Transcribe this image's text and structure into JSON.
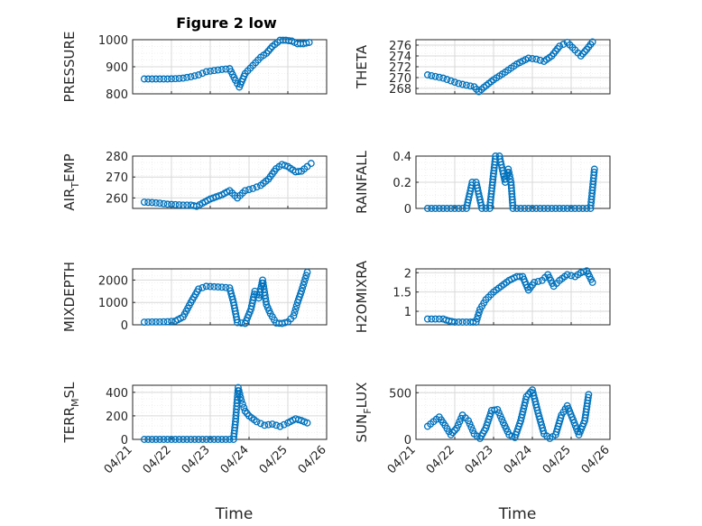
{
  "figure": {
    "title": "Figure 2 low"
  },
  "colors": {
    "marker": "#0072BD",
    "axis": "#262626",
    "grid": "#d9d9d9",
    "minor_grid": "#ececec"
  },
  "chart_data": [
    {
      "type": "scatter",
      "id": "pressure",
      "title": "Figure 2 low",
      "ylabel": "PRESSURE",
      "ylim": [
        800,
        1000
      ],
      "yticks": [
        800,
        900,
        1000
      ],
      "xlabel": "",
      "xlim": [
        0,
        5
      ],
      "xticks": [
        0,
        1,
        2,
        3,
        4,
        5
      ],
      "xticklabels": [
        "04/21",
        "04/22",
        "04/23",
        "04/24",
        "04/25",
        "04/26"
      ],
      "show_xticklabels": false,
      "grid": true,
      "minor_grid": true,
      "points": [
        [
          0.3,
          855
        ],
        [
          0.5,
          855
        ],
        [
          0.7,
          855
        ],
        [
          0.9,
          855
        ],
        [
          1.1,
          856
        ],
        [
          1.3,
          858
        ],
        [
          1.5,
          863
        ],
        [
          1.7,
          870
        ],
        [
          1.9,
          882
        ],
        [
          2.1,
          886
        ],
        [
          2.3,
          890
        ],
        [
          2.5,
          893
        ],
        [
          2.65,
          850
        ],
        [
          2.75,
          825
        ],
        [
          2.9,
          875
        ],
        [
          3.1,
          905
        ],
        [
          3.3,
          935
        ],
        [
          3.45,
          950
        ],
        [
          3.6,
          975
        ],
        [
          3.8,
          998
        ],
        [
          3.95,
          998
        ],
        [
          4.1,
          995
        ],
        [
          4.25,
          985
        ],
        [
          4.4,
          985
        ],
        [
          4.55,
          990
        ]
      ]
    },
    {
      "type": "scatter",
      "id": "theta",
      "ylabel": "THETA",
      "ylim": [
        267,
        277
      ],
      "yticks": [
        268,
        270,
        272,
        274,
        276
      ],
      "xlim": [
        0,
        5
      ],
      "xticks": [
        0,
        1,
        2,
        3,
        4,
        5
      ],
      "show_xticklabels": false,
      "grid": true,
      "minor_grid": true,
      "points": [
        [
          0.3,
          270.5
        ],
        [
          0.5,
          270.2
        ],
        [
          0.7,
          269.9
        ],
        [
          0.9,
          269.4
        ],
        [
          1.1,
          268.9
        ],
        [
          1.3,
          268.6
        ],
        [
          1.5,
          268.3
        ],
        [
          1.62,
          267.4
        ],
        [
          1.75,
          268.2
        ],
        [
          2.0,
          269.6
        ],
        [
          2.3,
          271.0
        ],
        [
          2.6,
          272.5
        ],
        [
          2.9,
          273.6
        ],
        [
          3.1,
          273.4
        ],
        [
          3.3,
          273.0
        ],
        [
          3.5,
          274.0
        ],
        [
          3.7,
          275.8
        ],
        [
          3.9,
          276.5
        ],
        [
          4.1,
          275.1
        ],
        [
          4.25,
          274.0
        ],
        [
          4.4,
          275.2
        ],
        [
          4.55,
          276.6
        ]
      ]
    },
    {
      "type": "scatter",
      "id": "air_temp",
      "ylabel": "AIR",
      "ylabel_sub": "T",
      "ylabel_rest": "EMP",
      "ylim": [
        255,
        280
      ],
      "yticks": [
        260,
        270,
        280
      ],
      "xlim": [
        0,
        5
      ],
      "xticks": [
        0,
        1,
        2,
        3,
        4,
        5
      ],
      "show_xticklabels": false,
      "grid": true,
      "minor_grid": true,
      "points": [
        [
          0.3,
          258
        ],
        [
          0.5,
          257.8
        ],
        [
          0.7,
          257.5
        ],
        [
          0.9,
          257
        ],
        [
          1.1,
          256.8
        ],
        [
          1.3,
          256.6
        ],
        [
          1.5,
          256.6
        ],
        [
          1.65,
          256
        ],
        [
          1.8,
          257.5
        ],
        [
          2.0,
          259.5
        ],
        [
          2.3,
          261.5
        ],
        [
          2.5,
          263.5
        ],
        [
          2.7,
          260
        ],
        [
          2.9,
          263.5
        ],
        [
          3.1,
          264.5
        ],
        [
          3.3,
          266
        ],
        [
          3.5,
          269
        ],
        [
          3.7,
          274
        ],
        [
          3.85,
          276
        ],
        [
          4.0,
          275
        ],
        [
          4.2,
          272.5
        ],
        [
          4.35,
          272.8
        ],
        [
          4.5,
          275
        ],
        [
          4.6,
          276.5
        ]
      ]
    },
    {
      "type": "scatter",
      "id": "rainfall",
      "ylabel": "RAINFALL",
      "ylim": [
        0,
        0.4
      ],
      "yticks": [
        0,
        0.2,
        0.4
      ],
      "xlim": [
        0,
        5
      ],
      "xticks": [
        0,
        1,
        2,
        3,
        4,
        5
      ],
      "show_xticklabels": false,
      "grid": true,
      "minor_grid": true,
      "points": [
        [
          0.3,
          0
        ],
        [
          0.5,
          0
        ],
        [
          0.7,
          0
        ],
        [
          0.9,
          0
        ],
        [
          1.1,
          0
        ],
        [
          1.3,
          0
        ],
        [
          1.45,
          0.2
        ],
        [
          1.55,
          0.2
        ],
        [
          1.7,
          0
        ],
        [
          1.9,
          0
        ],
        [
          2.05,
          0.4
        ],
        [
          2.15,
          0.4
        ],
        [
          2.3,
          0.2
        ],
        [
          2.38,
          0.3
        ],
        [
          2.45,
          0.2
        ],
        [
          2.5,
          0
        ],
        [
          2.7,
          0
        ],
        [
          2.9,
          0
        ],
        [
          3.1,
          0
        ],
        [
          3.3,
          0
        ],
        [
          3.5,
          0
        ],
        [
          3.7,
          0
        ],
        [
          3.9,
          0
        ],
        [
          4.1,
          0
        ],
        [
          4.3,
          0
        ],
        [
          4.5,
          0
        ],
        [
          4.6,
          0.3
        ]
      ]
    },
    {
      "type": "scatter",
      "id": "mixdepth",
      "ylabel": "MIXDEPTH",
      "ylim": [
        0,
        2500
      ],
      "yticks": [
        0,
        1000,
        2000
      ],
      "xlim": [
        0,
        5
      ],
      "xticks": [
        0,
        1,
        2,
        3,
        4,
        5
      ],
      "show_xticklabels": false,
      "grid": true,
      "minor_grid": true,
      "points": [
        [
          0.3,
          120
        ],
        [
          0.5,
          130
        ],
        [
          0.7,
          130
        ],
        [
          0.9,
          140
        ],
        [
          1.1,
          170
        ],
        [
          1.3,
          350
        ],
        [
          1.5,
          1000
        ],
        [
          1.7,
          1600
        ],
        [
          1.9,
          1720
        ],
        [
          2.1,
          1700
        ],
        [
          2.3,
          1680
        ],
        [
          2.5,
          1650
        ],
        [
          2.6,
          1000
        ],
        [
          2.7,
          100
        ],
        [
          2.9,
          60
        ],
        [
          3.05,
          700
        ],
        [
          3.15,
          1500
        ],
        [
          3.25,
          1200
        ],
        [
          3.35,
          2000
        ],
        [
          3.45,
          900
        ],
        [
          3.55,
          500
        ],
        [
          3.7,
          80
        ],
        [
          3.85,
          60
        ],
        [
          4.0,
          130
        ],
        [
          4.15,
          400
        ],
        [
          4.25,
          1000
        ],
        [
          4.35,
          1500
        ],
        [
          4.5,
          2350
        ]
      ]
    },
    {
      "type": "scatter",
      "id": "h2omixra",
      "ylabel": "H2OMIXRA",
      "ylim": [
        0.65,
        2.1
      ],
      "yticks": [
        1,
        1.5,
        2
      ],
      "xlim": [
        0,
        5
      ],
      "xticks": [
        0,
        1,
        2,
        3,
        4,
        5
      ],
      "show_xticklabels": false,
      "grid": true,
      "minor_grid": true,
      "points": [
        [
          0.3,
          0.8
        ],
        [
          0.5,
          0.8
        ],
        [
          0.7,
          0.8
        ],
        [
          0.85,
          0.75
        ],
        [
          1.0,
          0.72
        ],
        [
          1.2,
          0.72
        ],
        [
          1.4,
          0.72
        ],
        [
          1.55,
          0.72
        ],
        [
          1.65,
          1.05
        ],
        [
          1.8,
          1.3
        ],
        [
          2.0,
          1.5
        ],
        [
          2.2,
          1.65
        ],
        [
          2.4,
          1.8
        ],
        [
          2.6,
          1.9
        ],
        [
          2.75,
          1.9
        ],
        [
          2.9,
          1.55
        ],
        [
          3.05,
          1.75
        ],
        [
          3.25,
          1.8
        ],
        [
          3.4,
          1.95
        ],
        [
          3.55,
          1.65
        ],
        [
          3.7,
          1.8
        ],
        [
          3.9,
          1.95
        ],
        [
          4.1,
          1.9
        ],
        [
          4.25,
          2.0
        ],
        [
          4.4,
          2.05
        ],
        [
          4.55,
          1.75
        ]
      ]
    },
    {
      "type": "scatter",
      "id": "terr_msl",
      "ylabel": "TERR",
      "ylabel_sub": "M",
      "ylabel_rest": "SL",
      "ylim": [
        0,
        460
      ],
      "yticks": [
        0,
        200,
        400
      ],
      "xlabel": "Time",
      "xlim": [
        0,
        5
      ],
      "xticks": [
        0,
        1,
        2,
        3,
        4,
        5
      ],
      "xticklabels": [
        "04/21",
        "04/22",
        "04/23",
        "04/24",
        "04/25",
        "04/26"
      ],
      "show_xticklabels": true,
      "grid": true,
      "minor_grid": true,
      "points": [
        [
          0.3,
          0
        ],
        [
          0.5,
          0
        ],
        [
          0.7,
          0
        ],
        [
          0.9,
          0
        ],
        [
          1.1,
          0
        ],
        [
          1.3,
          0
        ],
        [
          1.5,
          0
        ],
        [
          1.7,
          0
        ],
        [
          1.9,
          0
        ],
        [
          2.1,
          0
        ],
        [
          2.3,
          0
        ],
        [
          2.5,
          0
        ],
        [
          2.6,
          0
        ],
        [
          2.65,
          150
        ],
        [
          2.72,
          440
        ],
        [
          2.8,
          330
        ],
        [
          2.9,
          240
        ],
        [
          3.0,
          200
        ],
        [
          3.2,
          150
        ],
        [
          3.4,
          120
        ],
        [
          3.6,
          130
        ],
        [
          3.8,
          110
        ],
        [
          4.0,
          140
        ],
        [
          4.2,
          175
        ],
        [
          4.35,
          160
        ],
        [
          4.5,
          140
        ]
      ]
    },
    {
      "type": "scatter",
      "id": "sun_flux",
      "ylabel": "SUN",
      "ylabel_sub": "F",
      "ylabel_rest": "LUX",
      "ylim": [
        0,
        580
      ],
      "yticks": [
        0,
        500
      ],
      "xlabel": "Time",
      "xlim": [
        0,
        5
      ],
      "xticks": [
        0,
        1,
        2,
        3,
        4,
        5
      ],
      "xticklabels": [
        "04/21",
        "04/22",
        "04/23",
        "04/24",
        "04/25",
        "04/26"
      ],
      "show_xticklabels": true,
      "grid": true,
      "minor_grid": true,
      "points": [
        [
          0.3,
          140
        ],
        [
          0.45,
          190
        ],
        [
          0.6,
          240
        ],
        [
          0.75,
          150
        ],
        [
          0.9,
          50
        ],
        [
          1.05,
          120
        ],
        [
          1.2,
          260
        ],
        [
          1.35,
          200
        ],
        [
          1.5,
          60
        ],
        [
          1.65,
          10
        ],
        [
          1.8,
          120
        ],
        [
          1.95,
          310
        ],
        [
          2.1,
          320
        ],
        [
          2.25,
          180
        ],
        [
          2.4,
          50
        ],
        [
          2.55,
          20
        ],
        [
          2.7,
          200
        ],
        [
          2.85,
          460
        ],
        [
          3.0,
          530
        ],
        [
          3.15,
          280
        ],
        [
          3.3,
          60
        ],
        [
          3.45,
          10
        ],
        [
          3.6,
          50
        ],
        [
          3.75,
          260
        ],
        [
          3.9,
          360
        ],
        [
          4.05,
          210
        ],
        [
          4.2,
          50
        ],
        [
          4.35,
          200
        ],
        [
          4.45,
          480
        ]
      ]
    }
  ]
}
